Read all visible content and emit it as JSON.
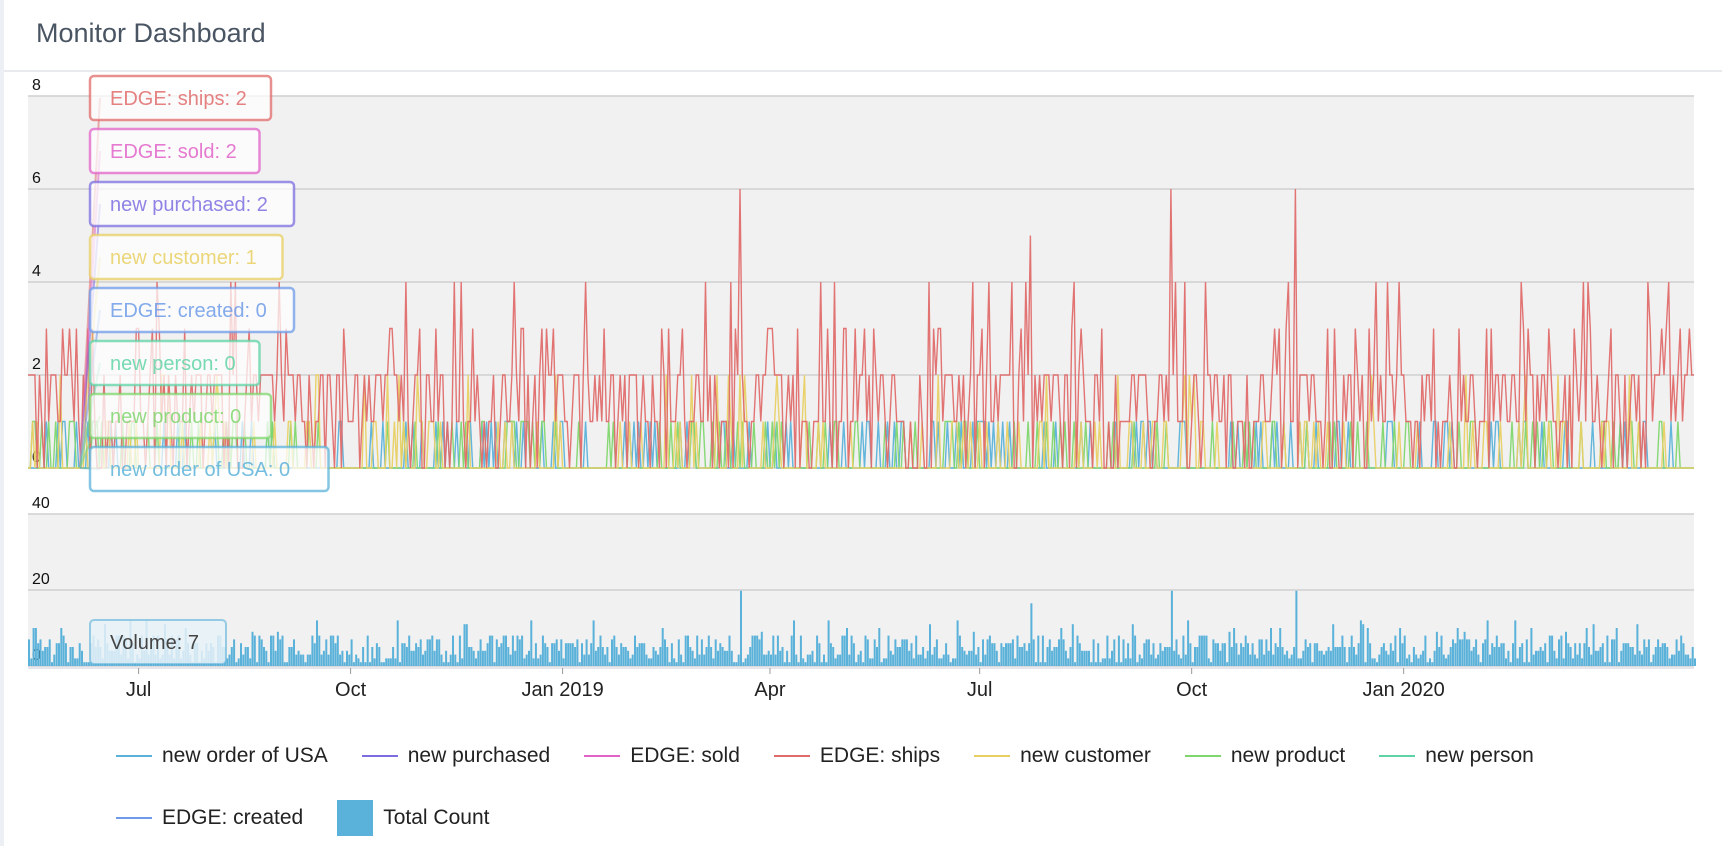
{
  "header": {
    "title": "Monitor Dashboard"
  },
  "chart_data": [
    {
      "type": "line",
      "y_ticks": [
        "0",
        "2",
        "4",
        "6",
        "8"
      ],
      "ylim": [
        0,
        8
      ],
      "grid": true,
      "series": [
        {
          "name": "EDGE: ships",
          "color": "#e06b6b"
        },
        {
          "name": "new customer",
          "color": "#e8cf63"
        },
        {
          "name": "new product",
          "color": "#7fd66d"
        },
        {
          "name": "new order of USA",
          "color": "#5ab1d9"
        }
      ],
      "note_peaks": [
        {
          "x": "2019-03-19",
          "y": 6
        },
        {
          "x": "2019-09-22",
          "y": 6
        },
        {
          "x": "2019-11-15",
          "y": 6
        },
        {
          "x": "2019-07-23",
          "y": 5
        }
      ]
    },
    {
      "type": "bar",
      "y_ticks": [
        "0",
        "20",
        "40"
      ],
      "ylim": [
        0,
        40
      ],
      "grid": true,
      "series": [
        {
          "name": "Total Count",
          "color": "#5ab1d9"
        }
      ]
    }
  ],
  "x_axis": {
    "start": "2018-05-14",
    "end": "2020-05-06",
    "ticks": [
      {
        "label": "Jul",
        "date": "2018-07-01"
      },
      {
        "label": "Oct",
        "date": "2018-10-01"
      },
      {
        "label": "Jan 2019",
        "date": "2019-01-01"
      },
      {
        "label": "Apr",
        "date": "2019-04-01"
      },
      {
        "label": "Jul",
        "date": "2019-07-01"
      },
      {
        "label": "Oct",
        "date": "2019-10-01"
      },
      {
        "label": "Jan 2020",
        "date": "2020-01-01"
      }
    ]
  },
  "tooltips": [
    {
      "text": "EDGE: ships: 2",
      "color": "#e06b6b"
    },
    {
      "text": "EDGE: sold: 2",
      "color": "#e063c8"
    },
    {
      "text": "new purchased: 2",
      "color": "#7b6de0"
    },
    {
      "text": "new customer: 1",
      "color": "#e8cf63"
    },
    {
      "text": "EDGE: created: 0",
      "color": "#6d9be8"
    },
    {
      "text": "new person: 0",
      "color": "#5fd3a6"
    },
    {
      "text": "new product: 0",
      "color": "#7fd66d"
    },
    {
      "text": "new order of USA: 0",
      "color": "#5ab1d9"
    }
  ],
  "volume_tooltip": {
    "text": "Volume: 7",
    "color": "#5ab1d9"
  },
  "legend": {
    "row1": [
      {
        "label": "new order of USA",
        "color": "#5ab1d9"
      },
      {
        "label": "new purchased",
        "color": "#7b6de0"
      },
      {
        "label": "EDGE: sold",
        "color": "#e063c8"
      },
      {
        "label": "EDGE: ships",
        "color": "#e06b6b"
      },
      {
        "label": "new customer",
        "color": "#e8cf63"
      },
      {
        "label": "new product",
        "color": "#7fd66d"
      },
      {
        "label": "new person",
        "color": "#5fd3a6"
      }
    ],
    "row2": [
      {
        "label": "EDGE: created",
        "color": "#6d9be8"
      }
    ],
    "box": {
      "label": "Total Count",
      "color": "#5ab1d9"
    }
  }
}
